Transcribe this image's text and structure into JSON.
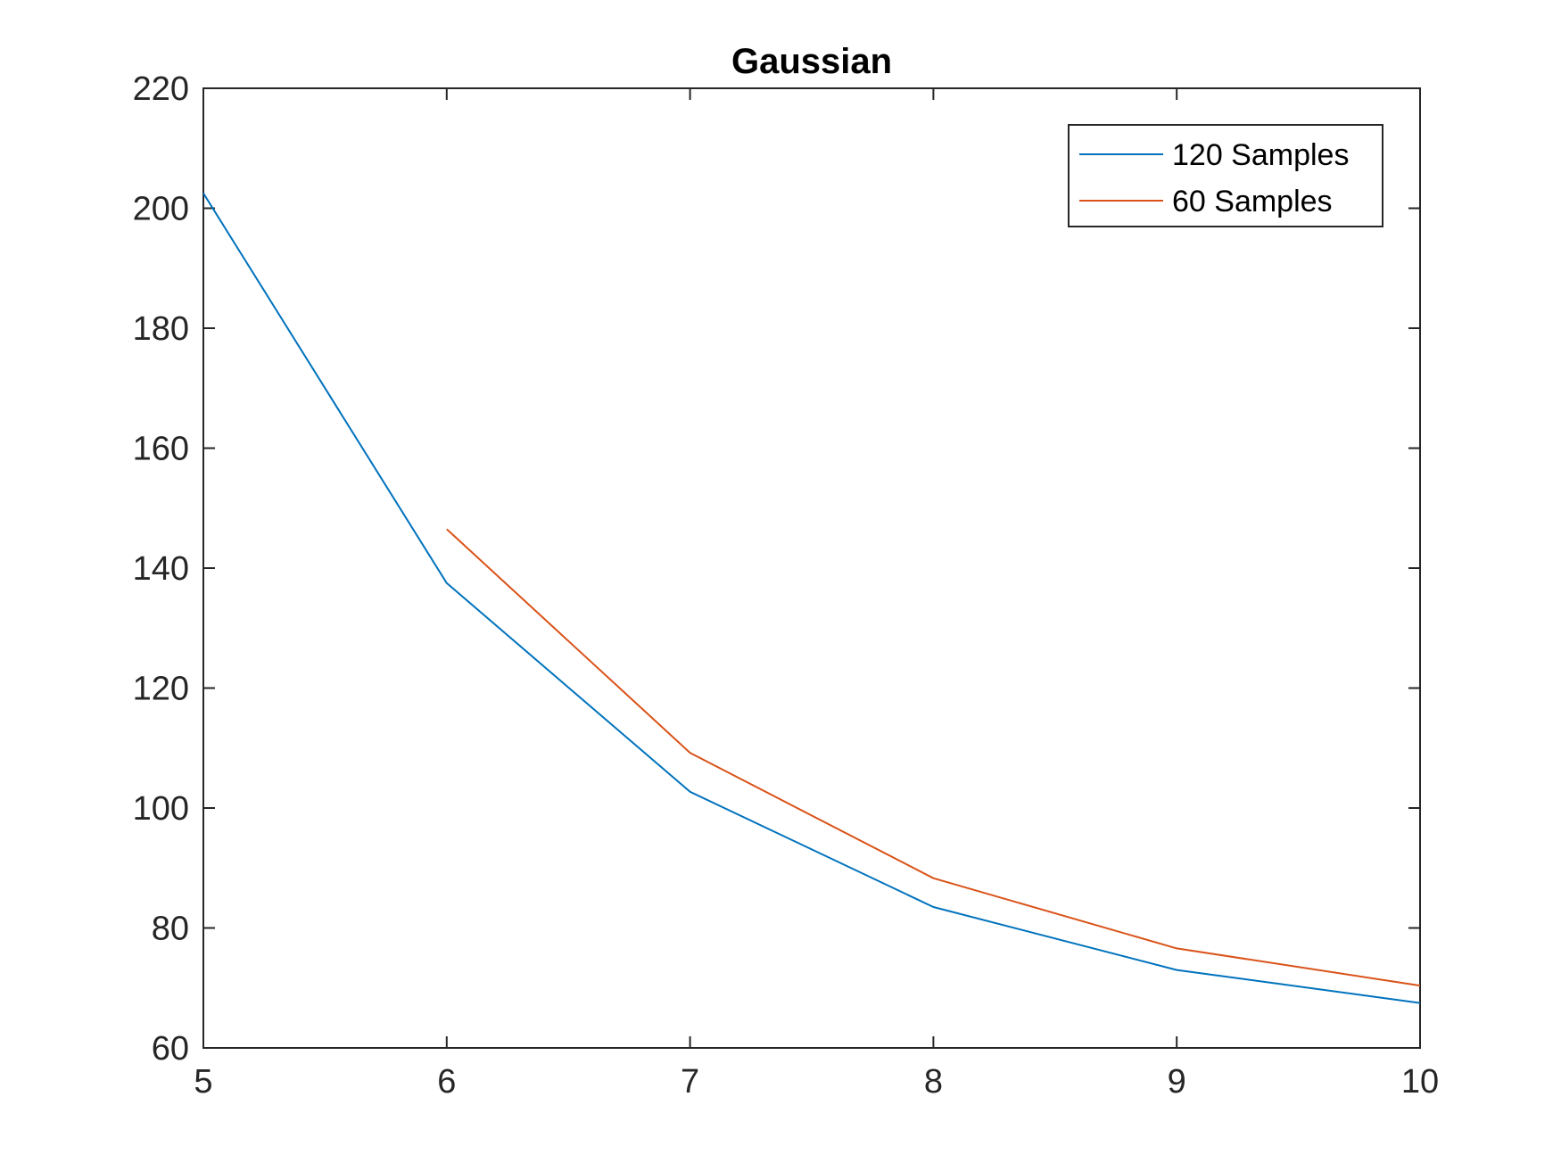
{
  "chart_data": {
    "type": "line",
    "title": "Gaussian",
    "xlabel": "",
    "ylabel": "",
    "xlim": [
      5,
      10
    ],
    "ylim": [
      60,
      220
    ],
    "xticks": [
      5,
      6,
      7,
      8,
      9,
      10
    ],
    "yticks": [
      60,
      80,
      100,
      120,
      140,
      160,
      180,
      200,
      220
    ],
    "grid": false,
    "legend_position": "top-right",
    "series": [
      {
        "name": "120 Samples",
        "color": "#0072BD",
        "x": [
          5,
          6,
          7,
          8,
          9,
          10
        ],
        "y": [
          202.5,
          137.5,
          102.7,
          83.5,
          73.0,
          67.5
        ]
      },
      {
        "name": "60 Samples",
        "color": "#D95319",
        "x": [
          6,
          7,
          8,
          9,
          10
        ],
        "y": [
          146.5,
          109.2,
          88.3,
          76.6,
          70.4
        ]
      }
    ]
  }
}
